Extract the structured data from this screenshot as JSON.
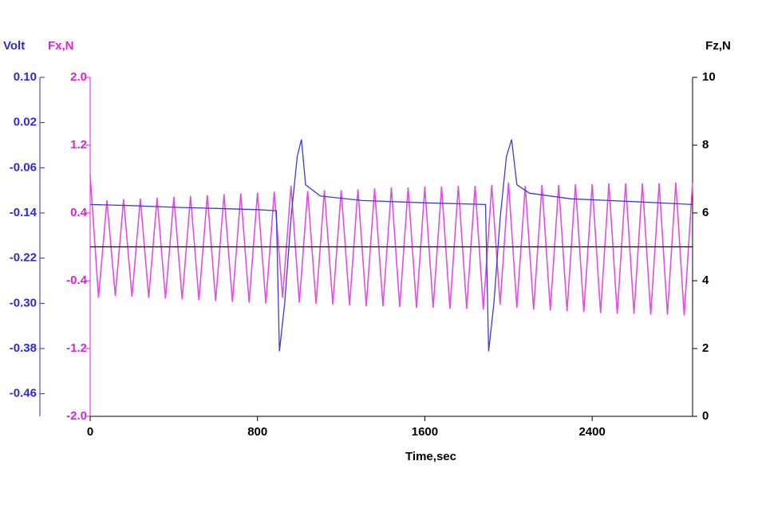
{
  "chart_data": {
    "type": "line",
    "x_label": "Time,sec",
    "y_label": "Fx,N",
    "y2_label": "Fz,N",
    "y3_label": "Volt",
    "xlim": [
      0,
      2880
    ],
    "xticks": [
      0,
      800,
      1600,
      2400
    ],
    "ylim": [
      -2,
      2
    ],
    "yticks": [
      {
        "value": 2,
        "label": "2.0"
      },
      {
        "value": 1.2,
        "label": "1.2"
      },
      0.4,
      -0.4,
      {
        "value": -1.2,
        "label": "-1.2"
      },
      {
        "value": -2,
        "label": "-2.0"
      }
    ],
    "y2lim": [
      0,
      10
    ],
    "y2ticks": [
      0,
      2,
      4,
      6,
      8,
      10
    ],
    "y3lim": [
      -0.5,
      0.1
    ],
    "y3ticks": [
      {
        "value": 0.1,
        "label": "0.10"
      },
      0.02,
      -0.06,
      -0.14,
      -0.22,
      {
        "value": -0.3,
        "label": "-0.30"
      },
      -0.38,
      -0.46
    ],
    "y_color": "#e020e0",
    "y2_color": "#000000",
    "y3_color": "#2b2bd0",
    "series": [
      {
        "axis": "y",
        "color": "#e24de2",
        "x": [
          0,
          40,
          80,
          120,
          160,
          200,
          240,
          280,
          320,
          360,
          400,
          440,
          480,
          520,
          560,
          600,
          640,
          680,
          720,
          760,
          800,
          840,
          880,
          920,
          960,
          1000,
          1040,
          1080,
          1120,
          1160,
          1200,
          1240,
          1280,
          1320,
          1360,
          1400,
          1440,
          1480,
          1520,
          1560,
          1600,
          1640,
          1680,
          1720,
          1760,
          1800,
          1840,
          1880,
          1920,
          1960,
          2000,
          2040,
          2080,
          2120,
          2160,
          2200,
          2240,
          2280,
          2320,
          2360,
          2400,
          2440,
          2480,
          2520,
          2560,
          2600,
          2640,
          2680,
          2720,
          2760,
          2800,
          2840,
          2880
        ],
        "values": [
          0.85,
          -0.6,
          0.55,
          -0.58,
          0.56,
          -0.59,
          0.57,
          -0.6,
          0.58,
          -0.61,
          0.59,
          -0.62,
          0.6,
          -0.63,
          0.61,
          -0.64,
          0.62,
          -0.65,
          0.63,
          -0.66,
          0.64,
          -0.67,
          0.65,
          -0.6,
          0.72,
          -0.66,
          0.66,
          -0.67,
          0.67,
          -0.68,
          0.67,
          -0.69,
          0.68,
          -0.7,
          0.69,
          -0.7,
          0.7,
          -0.71,
          0.7,
          -0.72,
          0.71,
          -0.72,
          0.71,
          -0.73,
          0.72,
          -0.73,
          0.72,
          -0.74,
          0.73,
          -0.68,
          0.76,
          -0.72,
          0.72,
          -0.74,
          0.73,
          -0.75,
          0.73,
          -0.76,
          0.74,
          -0.77,
          0.74,
          -0.78,
          0.75,
          -0.79,
          0.75,
          -0.79,
          0.75,
          -0.8,
          0.75,
          -0.8,
          0.76,
          -0.81,
          0.76
        ]
      },
      {
        "axis": "y2",
        "color": "#000000",
        "x": [
          0,
          2880
        ],
        "values": [
          5,
          5
        ]
      },
      {
        "axis": "y3",
        "color": "#3b3bdc",
        "x": [
          0,
          200,
          400,
          600,
          800,
          890,
          905,
          930,
          960,
          990,
          1010,
          1030,
          1100,
          1300,
          1600,
          1890,
          1905,
          1930,
          1960,
          1990,
          2015,
          2040,
          2100,
          2300,
          2600,
          2880
        ],
        "values": [
          -0.125,
          -0.127,
          -0.13,
          -0.132,
          -0.134,
          -0.136,
          -0.385,
          -0.3,
          -0.15,
          -0.04,
          -0.01,
          -0.09,
          -0.11,
          -0.118,
          -0.122,
          -0.125,
          -0.385,
          -0.3,
          -0.15,
          -0.04,
          -0.01,
          -0.09,
          -0.105,
          -0.115,
          -0.12,
          -0.125
        ]
      }
    ]
  }
}
